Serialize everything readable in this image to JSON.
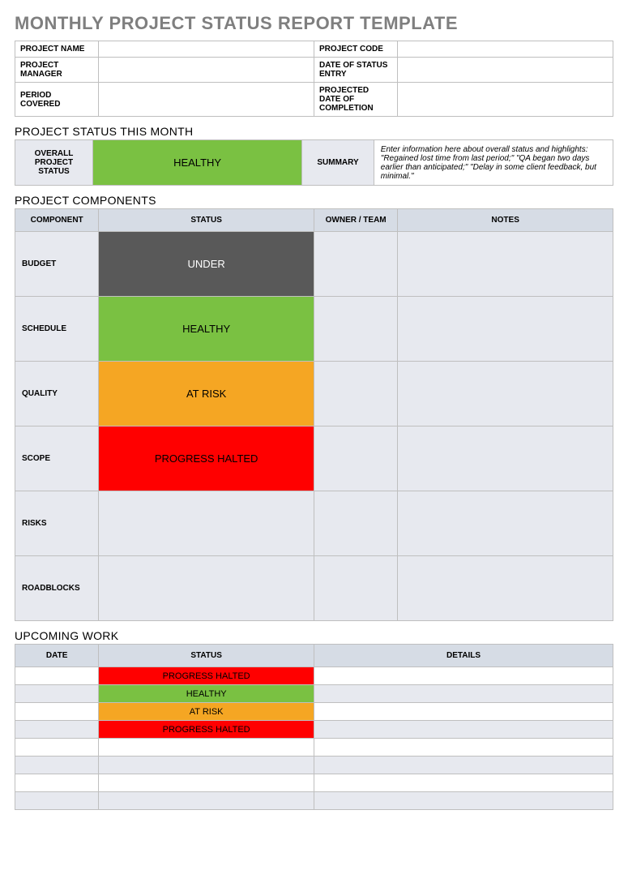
{
  "page_title": "MONTHLY PROJECT STATUS REPORT TEMPLATE",
  "status_colors": {
    "HEALTHY": {
      "bg": "#7ac142",
      "fg": "#000000"
    },
    "UNDER": {
      "bg": "#595959",
      "fg": "#ffffff"
    },
    "AT RISK": {
      "bg": "#f5a623",
      "fg": "#000000"
    },
    "PROGRESS HALTED": {
      "bg": "#ff0000",
      "fg": "#000000"
    }
  },
  "meta": {
    "rows": [
      {
        "label": "PROJECT NAME",
        "value": "",
        "label2": "PROJECT CODE",
        "value2": ""
      },
      {
        "label": "PROJECT MANAGER",
        "value": "",
        "label2": "DATE OF STATUS ENTRY",
        "value2": ""
      },
      {
        "label": "PERIOD COVERED",
        "value": "",
        "label2": "PROJECTED DATE OF COMPLETION",
        "value2": ""
      }
    ]
  },
  "sections": {
    "status_month": "PROJECT STATUS THIS MONTH",
    "components": "PROJECT COMPONENTS",
    "upcoming": "UPCOMING WORK"
  },
  "status_month": {
    "label": "OVERALL PROJECT STATUS",
    "status": "HEALTHY",
    "summary_label": "SUMMARY",
    "summary_text": "Enter information here about overall status and highlights: \"Regained lost time from last period;\" \"QA began two days earlier than anticipated;\" \"Delay in some client feedback, but minimal.\""
  },
  "components": {
    "headers": {
      "component": "COMPONENT",
      "status": "STATUS",
      "owner": "OWNER / TEAM",
      "notes": "NOTES"
    },
    "rows": [
      {
        "label": "BUDGET",
        "status": "UNDER",
        "owner": "",
        "notes": ""
      },
      {
        "label": "SCHEDULE",
        "status": "HEALTHY",
        "owner": "",
        "notes": ""
      },
      {
        "label": "QUALITY",
        "status": "AT RISK",
        "owner": "",
        "notes": ""
      },
      {
        "label": "SCOPE",
        "status": "PROGRESS HALTED",
        "owner": "",
        "notes": ""
      },
      {
        "label": "RISKS",
        "status": "",
        "owner": "",
        "notes": ""
      },
      {
        "label": "ROADBLOCKS",
        "status": "",
        "owner": "",
        "notes": ""
      }
    ]
  },
  "upcoming": {
    "headers": {
      "date": "DATE",
      "status": "STATUS",
      "details": "DETAILS"
    },
    "rows": [
      {
        "date": "",
        "status": "PROGRESS HALTED",
        "details": ""
      },
      {
        "date": "",
        "status": "HEALTHY",
        "details": ""
      },
      {
        "date": "",
        "status": "AT RISK",
        "details": ""
      },
      {
        "date": "",
        "status": "PROGRESS HALTED",
        "details": ""
      },
      {
        "date": "",
        "status": "",
        "details": ""
      },
      {
        "date": "",
        "status": "",
        "details": ""
      },
      {
        "date": "",
        "status": "",
        "details": ""
      },
      {
        "date": "",
        "status": "",
        "details": ""
      }
    ]
  }
}
